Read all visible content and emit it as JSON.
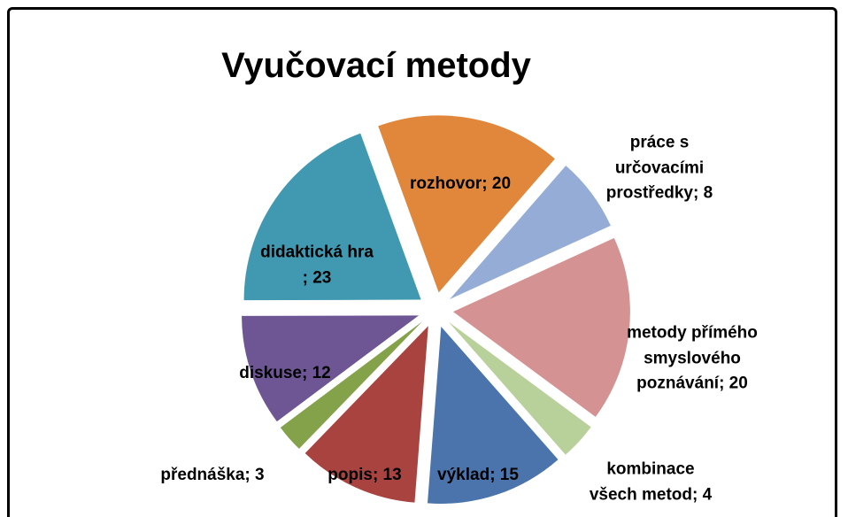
{
  "chart_data": {
    "type": "pie",
    "title": "Vyučovací metody",
    "categories": [
      "rozhovor",
      "práce s určovacími prostředky",
      "metody přímého smyslového poznávání",
      "kombinace všech metod",
      "výklad",
      "popis",
      "přednáška",
      "diskuse",
      "didaktická hra"
    ],
    "values": [
      20,
      8,
      20,
      4,
      15,
      13,
      3,
      12,
      23
    ],
    "value_labels": [
      "; 20",
      "; 8",
      "; 20",
      "; 4",
      "; 15",
      "; 13",
      "; 3",
      "; 12",
      "; 23"
    ],
    "colors": [
      "#e0873c",
      "#94acd6",
      "#d49392",
      "#b8d09a",
      "#4a74ab",
      "#a8433f",
      "#84a24a",
      "#6e5694",
      "#4099b0"
    ],
    "exploded": true
  }
}
